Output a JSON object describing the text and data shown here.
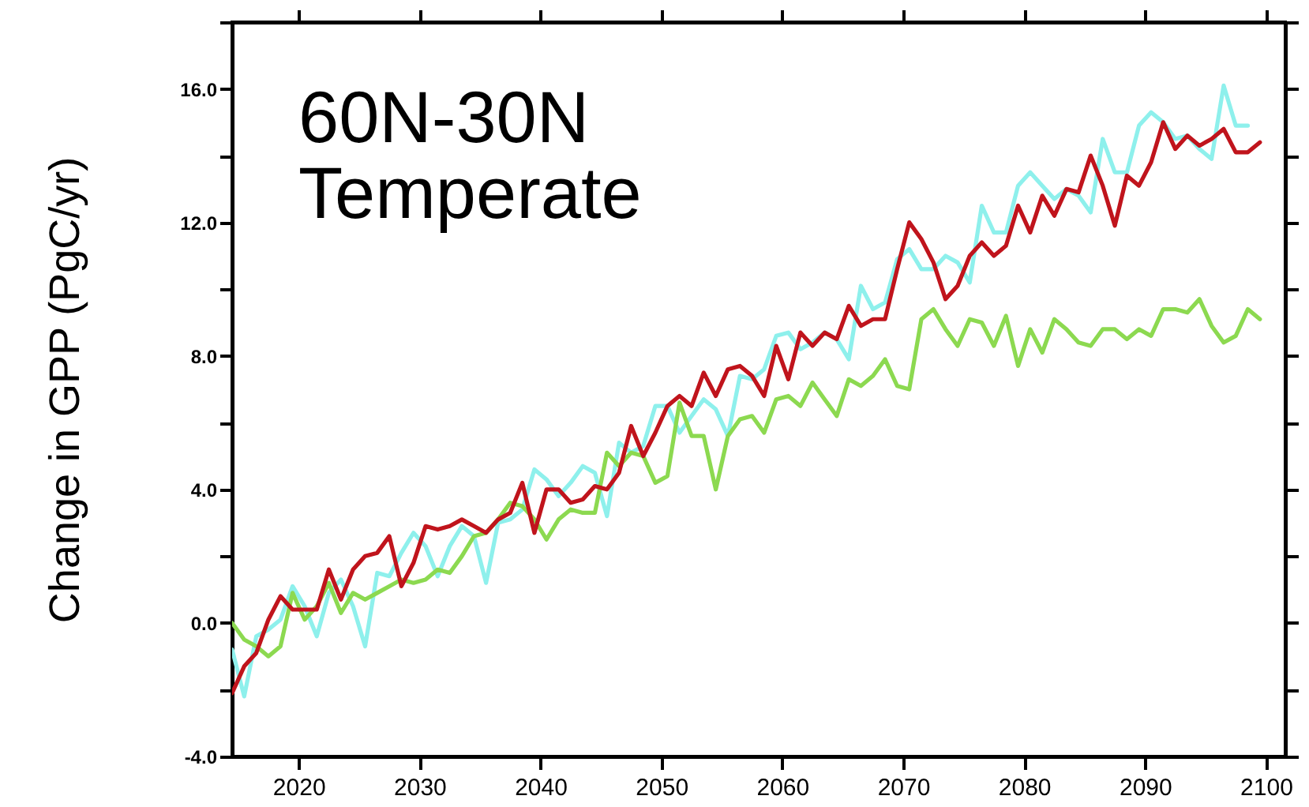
{
  "chart_data": {
    "type": "line",
    "ylabel": "Change in GPP (PgC/yr)",
    "annotations": [
      "60N-30N",
      "Temperate"
    ],
    "x": [
      2014.5,
      2015.5,
      2016.5,
      2017.5,
      2018.5,
      2019.5,
      2020.5,
      2021.5,
      2022.5,
      2023.5,
      2024.5,
      2025.5,
      2026.5,
      2027.5,
      2028.5,
      2029.5,
      2030.5,
      2031.5,
      2032.5,
      2033.5,
      2034.5,
      2035.5,
      2036.5,
      2037.5,
      2038.5,
      2039.5,
      2040.5,
      2041.5,
      2042.5,
      2043.5,
      2044.5,
      2045.5,
      2046.5,
      2047.5,
      2048.5,
      2049.5,
      2050.5,
      2051.5,
      2052.5,
      2053.5,
      2054.5,
      2055.5,
      2056.5,
      2057.5,
      2058.5,
      2059.5,
      2060.5,
      2061.5,
      2062.5,
      2063.5,
      2064.5,
      2065.5,
      2066.5,
      2067.5,
      2068.5,
      2069.5,
      2070.5,
      2071.5,
      2072.5,
      2073.5,
      2074.5,
      2075.5,
      2076.5,
      2077.5,
      2078.5,
      2079.5,
      2080.5,
      2081.5,
      2082.5,
      2083.5,
      2084.5,
      2085.5,
      2086.5,
      2087.5,
      2088.5,
      2089.5,
      2090.5,
      2091.5,
      2092.5,
      2093.5,
      2094.5,
      2095.5,
      2096.5,
      2097.5,
      2098.5,
      2099.5
    ],
    "series": [
      {
        "color": "#8ef0ec",
        "values": [
          -0.8,
          -2.2,
          -0.4,
          -0.2,
          0.1,
          1.1,
          0.5,
          -0.4,
          0.9,
          1.3,
          0.5,
          -0.7,
          1.5,
          1.4,
          2.1,
          2.7,
          2.3,
          1.4,
          2.3,
          2.9,
          2.6,
          1.2,
          3.0,
          3.1,
          3.4,
          4.6,
          4.3,
          3.8,
          4.2,
          4.7,
          4.5,
          3.2,
          5.4,
          5.1,
          5.3,
          6.5,
          6.5,
          5.7,
          6.2,
          6.7,
          6.4,
          5.6,
          7.4,
          7.3,
          7.6,
          8.6,
          8.7,
          8.2,
          8.4,
          8.7,
          8.5,
          7.9,
          10.1,
          9.4,
          9.6,
          10.9,
          11.2,
          10.6,
          10.6,
          11.0,
          10.8,
          10.2,
          12.5,
          11.7,
          11.7,
          13.1,
          13.5,
          13.1,
          12.7,
          13.0,
          12.8,
          12.3,
          14.5,
          13.5,
          13.5,
          14.9,
          15.3,
          15.0,
          14.5,
          14.6,
          14.2,
          13.9,
          16.1,
          14.9,
          14.9,
          null
        ]
      },
      {
        "color": "#8cd950",
        "values": [
          0.0,
          -0.5,
          -0.7,
          -1.0,
          -0.7,
          0.9,
          0.1,
          0.5,
          1.2,
          0.3,
          0.9,
          0.7,
          0.9,
          1.1,
          1.3,
          1.2,
          1.3,
          1.6,
          1.5,
          2.0,
          2.6,
          2.7,
          3.1,
          3.6,
          3.5,
          3.1,
          2.5,
          3.1,
          3.4,
          3.3,
          3.3,
          5.1,
          4.7,
          5.1,
          5.0,
          4.2,
          4.4,
          6.6,
          5.6,
          5.6,
          4.0,
          5.6,
          6.1,
          6.2,
          5.7,
          6.7,
          6.8,
          6.5,
          7.2,
          6.7,
          6.2,
          7.3,
          7.1,
          7.4,
          7.9,
          7.1,
          7.0,
          9.1,
          9.4,
          8.8,
          8.3,
          9.1,
          9.0,
          8.3,
          9.2,
          7.7,
          8.8,
          8.1,
          9.1,
          8.8,
          8.4,
          8.3,
          8.8,
          8.8,
          8.5,
          8.8,
          8.6,
          9.4,
          9.4,
          9.3,
          9.7,
          8.9,
          8.4,
          8.6,
          9.4,
          9.1
        ]
      },
      {
        "color": "#c0141c",
        "values": [
          -2.1,
          -1.3,
          -0.9,
          0.1,
          0.8,
          0.4,
          0.4,
          0.4,
          1.6,
          0.7,
          1.6,
          2.0,
          2.1,
          2.6,
          1.1,
          1.8,
          2.9,
          2.8,
          2.9,
          3.1,
          2.9,
          2.7,
          3.1,
          3.3,
          4.2,
          2.7,
          4.0,
          4.0,
          3.6,
          3.7,
          4.1,
          4.0,
          4.5,
          5.9,
          5.0,
          5.7,
          6.5,
          6.8,
          6.5,
          7.5,
          6.8,
          7.6,
          7.7,
          7.4,
          6.8,
          8.3,
          7.3,
          8.7,
          8.3,
          8.7,
          8.5,
          9.5,
          8.9,
          9.1,
          9.1,
          10.6,
          12.0,
          11.5,
          10.8,
          9.7,
          10.1,
          11.0,
          11.4,
          11.0,
          11.3,
          12.5,
          11.7,
          12.8,
          12.2,
          13.0,
          12.9,
          14.0,
          13.1,
          11.9,
          13.4,
          13.1,
          13.8,
          15.0,
          14.2,
          14.6,
          14.3,
          14.5,
          14.8,
          14.1,
          14.1,
          14.4
        ]
      }
    ],
    "xlim": [
      2014.5,
      2101.6
    ],
    "xticks": [
      2020,
      2030,
      2040,
      2050,
      2060,
      2070,
      2080,
      2090,
      2100
    ],
    "ylim": [
      -4,
      18
    ],
    "yticks": [
      {
        "value": -4,
        "label": "-4.0"
      },
      {
        "value": -2,
        "label": null
      },
      {
        "value": 0,
        "label": "0.0"
      },
      {
        "value": 2,
        "label": null
      },
      {
        "value": 4,
        "label": "4.0"
      },
      {
        "value": 6,
        "label": null
      },
      {
        "value": 8,
        "label": "8.0"
      },
      {
        "value": 10,
        "label": null
      },
      {
        "value": 12,
        "label": "12.0"
      },
      {
        "value": 14,
        "label": null
      },
      {
        "value": 16,
        "label": "16.0"
      },
      {
        "value": 18,
        "label": null
      }
    ],
    "line_style": "solid"
  }
}
